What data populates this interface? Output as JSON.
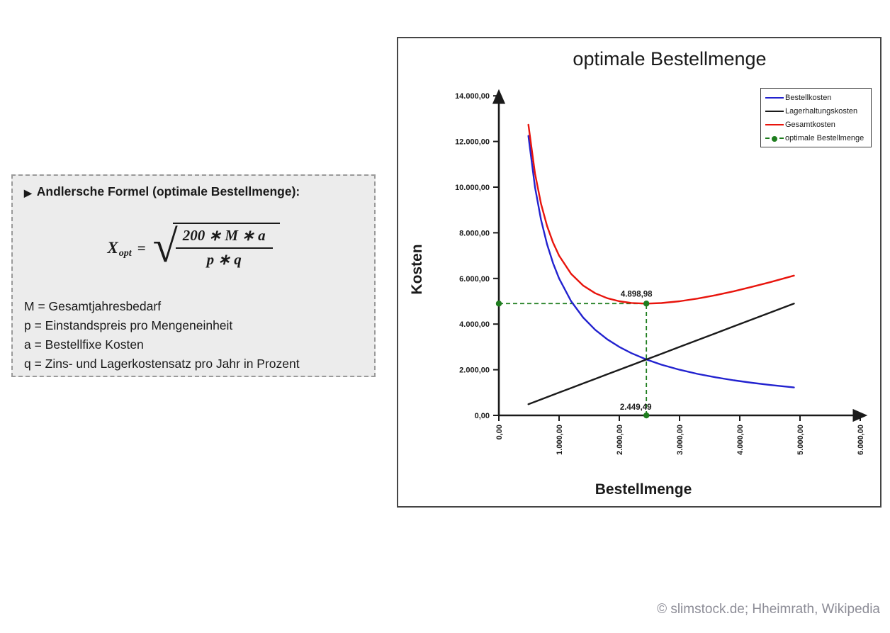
{
  "formula_box": {
    "bullet_icon": "▶",
    "title": "Andlersche Formel (optimale Bestellmenge):",
    "formula": {
      "lhs_var": "X",
      "lhs_sub": "opt",
      "equals": "=",
      "radical": "√",
      "numerator": "200 ∗ M ∗ a",
      "denominator": "p ∗ q"
    },
    "definitions": [
      "M = Gesamtjahresbedarf",
      "p = Einstandspreis pro Mengeneinheit",
      "a = Bestellfixe Kosten",
      "q = Zins- und Lagerkostensatz pro Jahr in Prozent"
    ]
  },
  "chart": {
    "title": "optimale Bestellmenge",
    "y_axis_label": "Kosten",
    "x_axis_label": "Bestellmenge",
    "y_ticks": [
      "0,00",
      "2.000,00",
      "4.000,00",
      "6.000,00",
      "8.000,00",
      "10.000,00",
      "12.000,00",
      "14.000,00"
    ],
    "x_ticks": [
      "0,00",
      "1.000,00",
      "2.000,00",
      "3.000,00",
      "4.000,00",
      "5.000,00",
      "6.000,00"
    ],
    "legend": [
      {
        "label": "Bestellkosten",
        "color": "#2222cf",
        "style": "solid"
      },
      {
        "label": "Lagerhaltungskosten",
        "color": "#1a1a1a",
        "style": "solid"
      },
      {
        "label": "Gesamtkosten",
        "color": "#e8140c",
        "style": "solid"
      },
      {
        "label": "optimale Bestellmenge",
        "color": "#1e7d1e",
        "style": "dashed-dot"
      }
    ]
  },
  "chart_data": {
    "type": "line",
    "title": "optimale Bestellmenge",
    "xlabel": "Bestellmenge",
    "ylabel": "Kosten",
    "xlim": [
      0,
      6000
    ],
    "ylim": [
      0,
      14000
    ],
    "grid": false,
    "legend_position": "top-right",
    "x": [
      490,
      600,
      700,
      800,
      900,
      1000,
      1200,
      1400,
      1600,
      1800,
      2000,
      2200,
      2449.49,
      2700,
      3000,
      3300,
      3600,
      3900,
      4200,
      4500,
      4900
    ],
    "series": [
      {
        "name": "Bestellkosten",
        "color": "#2222cf",
        "values": [
          12245,
          10000,
          8571,
          7500,
          6667,
          6000,
          5000,
          4286,
          3750,
          3333,
          3000,
          2727,
          2449.49,
          2222,
          2000,
          1818,
          1667,
          1538,
          1429,
          1333,
          1224
        ]
      },
      {
        "name": "Lagerhaltungskosten",
        "color": "#1a1a1a",
        "values": [
          490,
          600,
          700,
          800,
          900,
          1000,
          1200,
          1400,
          1600,
          1800,
          2000,
          2200,
          2449.49,
          2700,
          3000,
          3300,
          3600,
          3900,
          4200,
          4500,
          4900
        ]
      },
      {
        "name": "Gesamtkosten",
        "color": "#e8140c",
        "values": [
          12735,
          10600,
          9271,
          8300,
          7567,
          7000,
          6200,
          5686,
          5350,
          5133,
          5000,
          4927,
          4898.98,
          4922,
          5000,
          5118,
          5267,
          5438,
          5629,
          5833,
          6124
        ]
      }
    ],
    "optimum": {
      "name": "optimale Bestellmenge",
      "color": "#1e7d1e",
      "x": 2449.49,
      "y": 4898.98,
      "cost_label": "4.898,98",
      "quantity_label": "2.449,49"
    }
  },
  "footer": {
    "attribution": "© slimstock.de; Hheimrath, Wikipedia"
  }
}
